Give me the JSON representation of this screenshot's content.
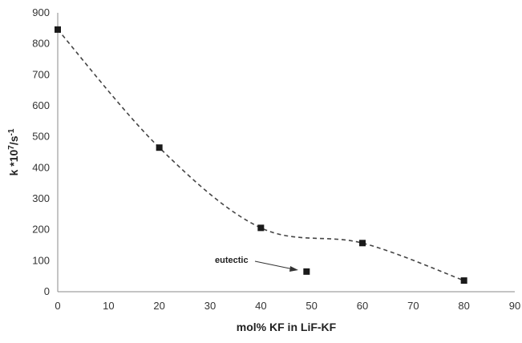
{
  "chart_data": {
    "type": "scatter",
    "title": "",
    "xlabel": "mol% KF in LiF-KF",
    "ylabel": {
      "base": "k *10",
      "sup1": "7",
      "mid": "/s",
      "sup2": "-1"
    },
    "xlim": [
      0,
      90
    ],
    "ylim": [
      0,
      900
    ],
    "x_ticks": [
      0,
      10,
      20,
      30,
      40,
      50,
      60,
      70,
      80,
      90
    ],
    "y_ticks": [
      0,
      100,
      200,
      300,
      400,
      500,
      600,
      700,
      800,
      900
    ],
    "grid": false,
    "series": [
      {
        "marker": "square",
        "color": "#1a1a1a",
        "points": [
          {
            "x": 0,
            "y": 846
          },
          {
            "x": 20,
            "y": 465
          },
          {
            "x": 40,
            "y": 206
          },
          {
            "x": 49,
            "y": 65
          },
          {
            "x": 60,
            "y": 157
          },
          {
            "x": 80,
            "y": 36
          }
        ]
      }
    ],
    "trendline": {
      "style": "dashed",
      "color": "#444444",
      "points": [
        {
          "x": 0,
          "y": 846
        },
        {
          "x": 20,
          "y": 465
        },
        {
          "x": 40,
          "y": 206
        },
        {
          "x": 60,
          "y": 157
        },
        {
          "x": 80,
          "y": 36
        }
      ]
    },
    "annotation": {
      "text": "eutectic",
      "target_x": 49,
      "target_y": 65
    }
  }
}
